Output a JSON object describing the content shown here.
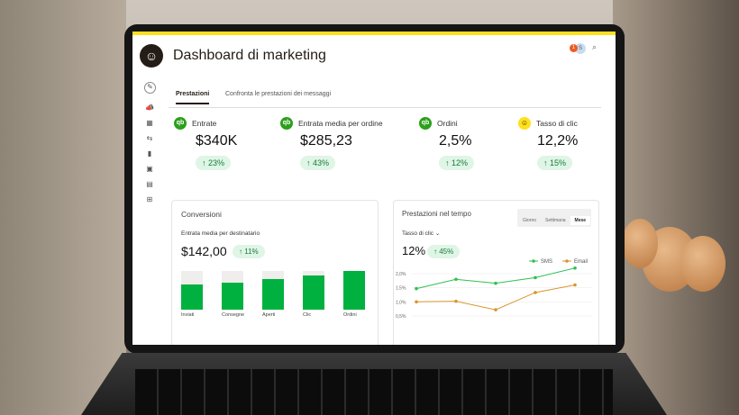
{
  "header": {
    "title": "Dashboard di marketing",
    "notification_count": "1",
    "avatar_initial": "S"
  },
  "tabs": [
    {
      "label": "Prestazioni",
      "active": true
    },
    {
      "label": "Confronta le prestazioni dei messaggi",
      "active": false
    }
  ],
  "metrics": [
    {
      "label": "Entrate",
      "value": "$340K",
      "change": "23%",
      "source": "qb"
    },
    {
      "label": "Entrata media per ordine",
      "value": "$285,23",
      "change": "43%",
      "source": "qb"
    },
    {
      "label": "Ordini",
      "value": "2,5%",
      "change": "12%",
      "source": "qb"
    },
    {
      "label": "Tasso di clic",
      "value": "12,2%",
      "change": "15%",
      "source": "mailchimp"
    }
  ],
  "conversions": {
    "title": "Conversioni",
    "subtitle": "Entrata media per destinatario",
    "value": "$142,00",
    "change": "11%"
  },
  "performance": {
    "title": "Prestazioni nel tempo",
    "periods": [
      "Giorno",
      "Settimana",
      "Mese"
    ],
    "active_period": "Mese",
    "metric_select": "Tasso di clic",
    "value": "12%",
    "change": "45%"
  },
  "chart_data": [
    {
      "type": "bar",
      "title": "Conversioni",
      "categories": [
        "Inviati",
        "Consegne",
        "Aperti",
        "Clic",
        "Ordini"
      ],
      "values": [
        0.65,
        0.7,
        0.8,
        0.88,
        1.0
      ],
      "color": "#00b140"
    },
    {
      "type": "line",
      "title": "Prestazioni nel tempo",
      "x": [
        1,
        2,
        3,
        4,
        5
      ],
      "yticks": [
        "2,0%",
        "1,5%",
        "1,0%",
        "0,5%"
      ],
      "ylim": [
        0.5,
        2.2
      ],
      "series": [
        {
          "name": "SMS",
          "values": [
            1.47,
            1.8,
            1.66,
            1.86,
            2.2
          ],
          "color": "#2ec052"
        },
        {
          "name": "Email",
          "values": [
            1.0,
            1.02,
            0.72,
            1.33,
            1.6
          ],
          "color": "#d9962c"
        }
      ],
      "legend": "top-right"
    }
  ]
}
